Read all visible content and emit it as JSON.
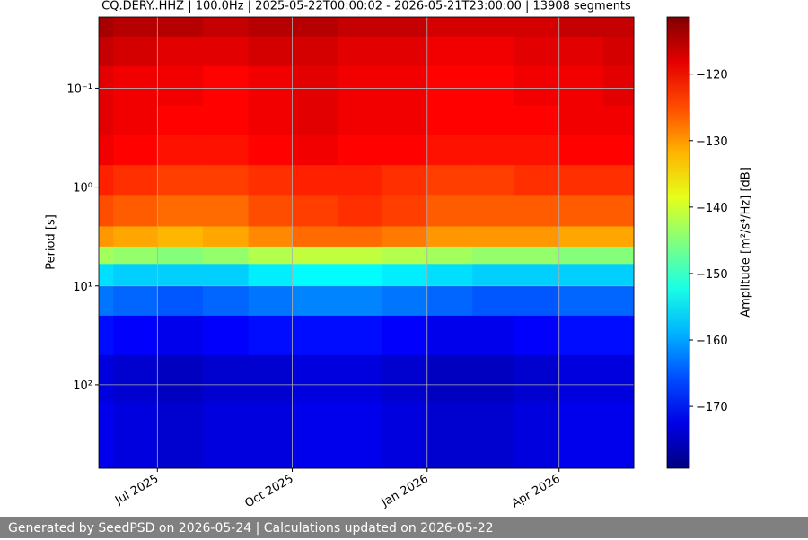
{
  "chart_data": {
    "type": "heatmap",
    "title": "CQ.DERY..HHZ | 100.0Hz | 2025-05-22T00:00:02 - 2026-05-21T23:00:00 | 13908 segments",
    "y_label": "Period [s]",
    "colorbar_label": "Amplitude [m²/s⁴/Hz] [dB]",
    "colormap": "jet",
    "log_y": true,
    "y_inverted": true,
    "grid": true,
    "xlim": [
      "2025-05-22",
      "2026-05-21"
    ],
    "xticks": [
      {
        "value": "2025-07",
        "label": "Jul 2025"
      },
      {
        "value": "2025-10",
        "label": "Oct 2025"
      },
      {
        "value": "2026-01",
        "label": "Jan 2026"
      },
      {
        "value": "2026-04",
        "label": "Apr 2026"
      }
    ],
    "ylim": [
      0.019,
      700
    ],
    "yticks": [
      {
        "value": 0.1,
        "label": "10⁻¹"
      },
      {
        "value": 1,
        "label": "10⁰"
      },
      {
        "value": 10,
        "label": "10¹"
      },
      {
        "value": 100,
        "label": "10²"
      }
    ],
    "zlim": [
      -179.3,
      -111.4
    ],
    "zticks": [
      {
        "value": -120,
        "label": "−120"
      },
      {
        "value": -130,
        "label": "−130"
      },
      {
        "value": -140,
        "label": "−140"
      },
      {
        "value": -150,
        "label": "−150"
      },
      {
        "value": -160,
        "label": "−160"
      },
      {
        "value": -170,
        "label": "−170"
      }
    ],
    "x": [
      "2025-05",
      "2025-06",
      "2025-07",
      "2025-08",
      "2025-09",
      "2025-10",
      "2025-11",
      "2025-12",
      "2026-01",
      "2026-02",
      "2026-03",
      "2026-04",
      "2026-05"
    ],
    "y_bins": [
      0.019,
      0.03,
      0.06,
      0.15,
      0.3,
      0.6,
      1.2,
      2.5,
      4,
      6,
      10,
      20,
      50,
      150,
      700
    ],
    "z": [
      [
        -114,
        -115,
        -115,
        -116,
        -115,
        -115,
        -116,
        -116,
        -117,
        -117,
        -117,
        -116,
        -116
      ],
      [
        -116,
        -117,
        -118,
        -118,
        -117,
        -117,
        -118,
        -118,
        -119,
        -119,
        -118,
        -118,
        -117
      ],
      [
        -118,
        -119,
        -119,
        -120,
        -119,
        -118,
        -119,
        -119,
        -120,
        -120,
        -119,
        -119,
        -118
      ],
      [
        -118,
        -119,
        -120,
        -120,
        -119,
        -118,
        -119,
        -119,
        -120,
        -120,
        -120,
        -119,
        -119
      ],
      [
        -119,
        -120,
        -121,
        -121,
        -120,
        -119,
        -120,
        -120,
        -121,
        -121,
        -121,
        -120,
        -120
      ],
      [
        -122,
        -123,
        -124,
        -124,
        -123,
        -122,
        -122,
        -123,
        -124,
        -124,
        -123,
        -123,
        -123
      ],
      [
        -125,
        -126,
        -127,
        -127,
        -125,
        -124,
        -123,
        -124,
        -126,
        -126,
        -126,
        -126,
        -126
      ],
      [
        -130,
        -131,
        -132,
        -131,
        -129,
        -127,
        -127,
        -128,
        -130,
        -130,
        -130,
        -131,
        -131
      ],
      [
        -143,
        -144,
        -145,
        -144,
        -142,
        -141,
        -141,
        -142,
        -143,
        -144,
        -144,
        -145,
        -145
      ],
      [
        -156,
        -157,
        -157,
        -157,
        -155,
        -154,
        -154,
        -155,
        -156,
        -157,
        -157,
        -157,
        -157
      ],
      [
        -163,
        -164,
        -165,
        -164,
        -163,
        -162,
        -162,
        -163,
        -164,
        -165,
        -165,
        -164,
        -164
      ],
      [
        -170,
        -171,
        -172,
        -171,
        -170,
        -170,
        -170,
        -171,
        -172,
        -172,
        -171,
        -170,
        -170
      ],
      [
        -173,
        -174,
        -175,
        -174,
        -174,
        -173,
        -173,
        -174,
        -175,
        -175,
        -174,
        -173,
        -173
      ],
      [
        -172,
        -173,
        -174,
        -173,
        -173,
        -172,
        -172,
        -173,
        -174,
        -174,
        -173,
        -172,
        -172
      ]
    ]
  },
  "footer": "Generated by SeedPSD on 2026-05-24 | Calculations updated on 2026-05-22"
}
